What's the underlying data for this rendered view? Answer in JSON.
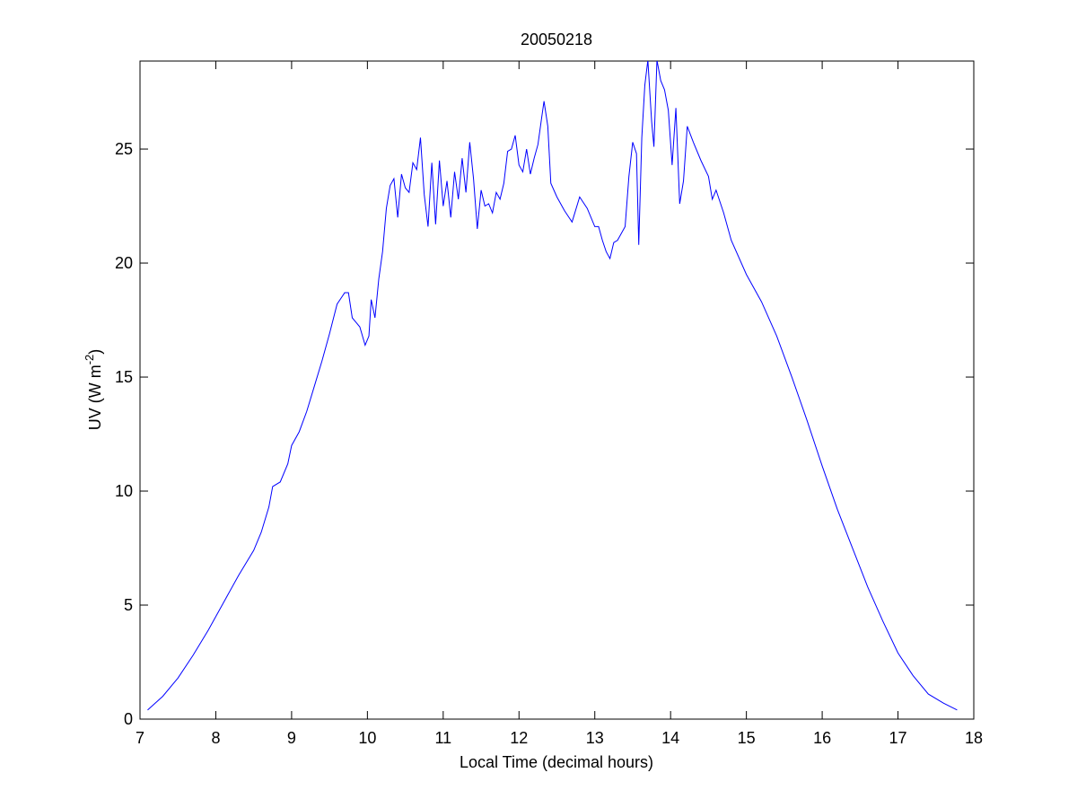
{
  "chart_data": {
    "type": "line",
    "title": "20050218",
    "x_label": "Local Time (decimal hours)",
    "y_label_parts": [
      "UV (W m",
      "-2",
      ")"
    ],
    "xlim": [
      7,
      18
    ],
    "xticks": [
      7,
      8,
      9,
      10,
      11,
      12,
      13,
      14,
      15,
      16,
      17,
      18
    ],
    "ylim": [
      0,
      28.86
    ],
    "yticks": [
      0,
      5,
      10,
      15,
      20,
      25
    ],
    "grid": false,
    "series": [
      {
        "color": "#0000ff",
        "x": [
          7.1,
          7.3,
          7.5,
          7.7,
          7.9,
          8.1,
          8.3,
          8.5,
          8.6,
          8.7,
          8.75,
          8.85,
          8.95,
          9.0,
          9.1,
          9.2,
          9.3,
          9.4,
          9.5,
          9.6,
          9.7,
          9.75,
          9.8,
          9.85,
          9.9,
          9.97,
          10.02,
          10.05,
          10.1,
          10.15,
          10.2,
          10.25,
          10.3,
          10.35,
          10.4,
          10.45,
          10.5,
          10.55,
          10.6,
          10.65,
          10.7,
          10.75,
          10.8,
          10.85,
          10.9,
          10.95,
          11.0,
          11.05,
          11.1,
          11.15,
          11.2,
          11.25,
          11.3,
          11.35,
          11.4,
          11.45,
          11.5,
          11.55,
          11.6,
          11.65,
          11.7,
          11.75,
          11.8,
          11.85,
          11.9,
          11.95,
          12.0,
          12.05,
          12.1,
          12.15,
          12.2,
          12.25,
          12.3,
          12.33,
          12.38,
          12.42,
          12.5,
          12.6,
          12.7,
          12.8,
          12.9,
          13.0,
          13.05,
          13.1,
          13.15,
          13.2,
          13.25,
          13.3,
          13.4,
          13.45,
          13.5,
          13.55,
          13.58,
          13.62,
          13.66,
          13.7,
          13.75,
          13.78,
          13.82,
          13.87,
          13.92,
          13.97,
          14.02,
          14.07,
          14.12,
          14.17,
          14.22,
          14.3,
          14.4,
          14.5,
          14.55,
          14.6,
          14.7,
          14.8,
          15.0,
          15.2,
          15.4,
          15.6,
          15.8,
          16.0,
          16.2,
          16.4,
          16.6,
          16.8,
          17.0,
          17.2,
          17.4,
          17.6,
          17.78
        ],
        "values": [
          0.4,
          1.0,
          1.8,
          2.8,
          3.9,
          5.1,
          6.3,
          7.4,
          8.2,
          9.3,
          10.2,
          10.4,
          11.2,
          12.0,
          12.6,
          13.5,
          14.6,
          15.7,
          16.9,
          18.2,
          18.7,
          18.7,
          17.6,
          17.4,
          17.2,
          16.4,
          16.8,
          18.4,
          17.6,
          19.3,
          20.5,
          22.4,
          23.4,
          23.7,
          22.0,
          23.9,
          23.3,
          23.1,
          24.4,
          24.1,
          25.5,
          23.0,
          21.6,
          24.4,
          21.7,
          24.5,
          22.5,
          23.6,
          22.0,
          24.0,
          22.8,
          24.6,
          23.1,
          25.3,
          23.7,
          21.5,
          23.2,
          22.5,
          22.6,
          22.2,
          23.1,
          22.8,
          23.5,
          24.9,
          25.0,
          25.6,
          24.3,
          24.0,
          25.0,
          23.9,
          24.6,
          25.2,
          26.4,
          27.1,
          26.0,
          23.5,
          22.9,
          22.3,
          21.8,
          22.9,
          22.4,
          21.6,
          21.6,
          21.0,
          20.5,
          20.2,
          20.9,
          21.0,
          21.6,
          23.8,
          25.3,
          24.8,
          20.8,
          25.5,
          27.8,
          28.9,
          26.2,
          25.1,
          28.9,
          28.0,
          27.6,
          26.7,
          24.3,
          26.8,
          22.6,
          23.6,
          26.0,
          25.3,
          24.5,
          23.8,
          22.8,
          23.2,
          22.2,
          21.0,
          19.5,
          18.3,
          16.8,
          15.0,
          13.1,
          11.1,
          9.2,
          7.5,
          5.8,
          4.3,
          2.9,
          1.9,
          1.1,
          0.7,
          0.4
        ]
      }
    ]
  }
}
